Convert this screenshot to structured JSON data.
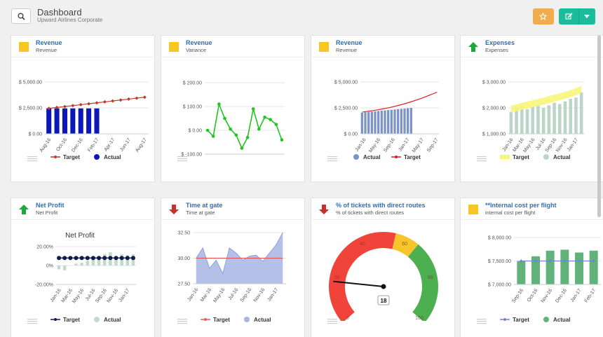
{
  "header": {
    "title": "Dashboard",
    "subtitle": "Upward Airlines Corporate"
  },
  "colors": {
    "accent": "#1abc9c",
    "star": "#f0ad4e",
    "title_link": "#2a6fc0",
    "status_neutral": "#f7c623",
    "status_up": "#1fa83a",
    "status_down": "#c9302c"
  },
  "cards": [
    {
      "title": "Revenue",
      "subtitle": "Revenue",
      "status_icon": "yellow-square-icon",
      "legend": [
        "Target",
        "Actual"
      ],
      "chart_data": {
        "type": "bar",
        "yticks": [
          "$ 5,000.00",
          "$ 2,500.00",
          "$ 0.00"
        ],
        "ylim": [
          0,
          5000
        ],
        "categories": [
          "Aug-16",
          "Sep-16",
          "Oct-16",
          "Nov-16",
          "Dec-16",
          "Jan-17",
          "Feb-17",
          "Mar-17",
          "Apr-17",
          "May-17",
          "Jun-17",
          "Jul-17",
          "Aug-17"
        ],
        "xticks": [
          "Aug-16",
          "Oct-16",
          "Dec-16",
          "Feb-17",
          "Apr-17",
          "Jun-17",
          "Aug-17"
        ],
        "series": [
          {
            "name": "Actual",
            "type": "bar",
            "color": "#0b17b8",
            "values": [
              2450,
              2450,
              2450,
              2450,
              2450,
              2450,
              2450,
              null,
              null,
              null,
              null,
              null,
              null
            ]
          },
          {
            "name": "Target",
            "type": "line",
            "color": "#c0392b",
            "values": [
              2450,
              2540,
              2630,
              2720,
              2810,
              2900,
              2990,
              3080,
              3170,
              3260,
              3350,
              3440,
              3530
            ]
          }
        ]
      }
    },
    {
      "title": "Revenue",
      "subtitle": "Variance",
      "status_icon": "yellow-square-icon",
      "legend": [],
      "chart_data": {
        "type": "line",
        "yticks": [
          "$ 200.00",
          "$ 100.00",
          "$ 0.00",
          "$ -100.00"
        ],
        "ylim": [
          -100,
          200
        ],
        "categories": [
          "Jan-16",
          "Feb-16",
          "Mar-16",
          "Apr-16",
          "May-16",
          "Jun-16",
          "Jul-16",
          "Aug-16",
          "Sep-16",
          "Oct-16",
          "Nov-16",
          "Dec-16",
          "Jan-17",
          "Feb-17"
        ],
        "xticks": [
          "Jan-16",
          "Mar-16",
          "May-16",
          "Jul-16",
          "Sep-16",
          "Nov-16",
          "Jan-17"
        ],
        "series": [
          {
            "name": "Variance",
            "color": "#22c322",
            "values": [
              0,
              -25,
              110,
              50,
              5,
              -20,
              -75,
              -30,
              90,
              5,
              55,
              45,
              25,
              -40
            ]
          }
        ]
      }
    },
    {
      "title": "Revenue",
      "subtitle": "Revenue",
      "status_icon": "yellow-square-icon",
      "legend": [
        "Actual",
        "Target"
      ],
      "chart_data": {
        "type": "bar",
        "yticks": [
          "$ 5,000.00",
          "$ 2,500.00",
          "$ 0.00"
        ],
        "ylim": [
          0,
          5000
        ],
        "xticks": [
          "Jan-16",
          "May-16",
          "Sep-16",
          "Jan-17",
          "May-17",
          "Sep-17"
        ],
        "x_months": 24,
        "series": [
          {
            "name": "Actual",
            "type": "bar",
            "color": "#7b93c5",
            "values": [
              2050,
              2080,
              2110,
              2140,
              2170,
              2200,
              2230,
              2260,
              2290,
              2320,
              2350,
              2380,
              2410,
              2440,
              2470,
              2500
            ]
          },
          {
            "name": "Target",
            "type": "line",
            "color": "#e01b1b",
            "values": [
              2100,
              2150,
              2200,
              2260,
              2320,
              2390,
              2460,
              2540,
              2630,
              2720,
              2820,
              2930,
              3040,
              3160,
              3290,
              3420,
              3560,
              3710,
              3860,
              4020
            ]
          }
        ]
      }
    },
    {
      "title": "Expenses",
      "subtitle": "Expenses",
      "status_icon": "arrow-up-icon",
      "legend": [
        "Target",
        "Actual"
      ],
      "chart_data": {
        "type": "bar",
        "yticks": [
          "$ 3,000.00",
          "$ 2,000.00",
          "$ 1,000.00"
        ],
        "ylim": [
          1000,
          3000
        ],
        "categories": [
          "Jan-16",
          "Feb-16",
          "Mar-16",
          "Apr-16",
          "May-16",
          "Jun-16",
          "Jul-16",
          "Aug-16",
          "Sep-16",
          "Oct-16",
          "Nov-16",
          "Dec-16",
          "Jan-17",
          "Feb-17"
        ],
        "xticks": [
          "Jan-16",
          "Mar-16",
          "May-16",
          "Jul-16",
          "Sep-16",
          "Nov-16",
          "Jan-17"
        ],
        "series": [
          {
            "name": "Actual",
            "type": "bar",
            "color": "#bcd5cb",
            "values": [
              1850,
              2050,
              2100,
              1950,
              2050,
              2100,
              2000,
              2100,
              2200,
              2150,
              2250,
              2350,
              2400,
              2600
            ]
          },
          {
            "name": "Target",
            "type": "area",
            "color": "#f7f57a",
            "values": [
              1950,
              2000,
              2060,
              2110,
              2160,
              2210,
              2260,
              2320,
              2370,
              2430,
              2490,
              2550,
              2620,
              2720
            ]
          }
        ]
      }
    },
    {
      "title": "Net Profit",
      "subtitle": "Net Profit",
      "status_icon": "arrow-up-icon",
      "legend": [
        "Target",
        "Actual"
      ],
      "chart_data": {
        "type": "bar",
        "title": "Net Profit",
        "yticks": [
          "20.00%",
          "0%",
          "-20.00%"
        ],
        "ylim": [
          -20,
          20
        ],
        "categories": [
          "Jan-16",
          "Feb-16",
          "Mar-16",
          "Apr-16",
          "May-16",
          "Jun-16",
          "Jul-16",
          "Aug-16",
          "Sep-16",
          "Oct-16",
          "Nov-16",
          "Dec-16",
          "Jan-17",
          "Feb-17"
        ],
        "xticks": [
          "Jan-16",
          "Mar-16",
          "May-16",
          "Jul-16",
          "Sep-16",
          "Nov-16",
          "Jan-17"
        ],
        "series": [
          {
            "name": "Actual",
            "type": "bar",
            "color": "#c3dac9",
            "values": [
              -4,
              -5,
              0,
              2,
              3,
              5,
              8,
              10,
              12,
              14,
              10,
              12,
              11,
              12
            ]
          },
          {
            "name": "Target",
            "type": "line",
            "color": "#0d1b4c",
            "values": [
              8,
              8,
              8,
              8,
              8,
              8,
              8,
              8,
              8,
              8,
              8,
              8,
              8,
              8
            ]
          }
        ]
      }
    },
    {
      "title": "Time at gate",
      "subtitle": "Time at gate",
      "status_icon": "arrow-down-icon",
      "legend": [
        "Target",
        "Actual"
      ],
      "chart_data": {
        "type": "area",
        "yticks": [
          "32.50",
          "30.00",
          "27.50"
        ],
        "ylim": [
          27.5,
          32.5
        ],
        "categories": [
          "Jan-16",
          "Feb-16",
          "Mar-16",
          "Apr-16",
          "May-16",
          "Jun-16",
          "Jul-16",
          "Aug-16",
          "Sep-16",
          "Oct-16",
          "Nov-16",
          "Dec-16",
          "Jan-17",
          "Feb-17"
        ],
        "xticks": [
          "Jan-16",
          "Mar-16",
          "May-16",
          "Jul-16",
          "Sep-16",
          "Nov-16",
          "Jan-17"
        ],
        "series": [
          {
            "name": "Actual",
            "type": "area",
            "color": "#a7b5e4",
            "values": [
              30.0,
              31.0,
              29.0,
              29.8,
              28.5,
              31.0,
              30.5,
              29.8,
              30.2,
              30.3,
              29.7,
              30.5,
              31.3,
              32.5
            ]
          },
          {
            "name": "Target",
            "type": "line",
            "color": "#e05a5a",
            "values": [
              30.0,
              30.0,
              30.0,
              30.0,
              30.0,
              30.0,
              30.0,
              30.0,
              30.0,
              30.0,
              30.0,
              30.0,
              30.0,
              30.0
            ]
          }
        ]
      }
    },
    {
      "title": "% of tickets with direct routes",
      "subtitle": "% of tickets with direct routes",
      "status_icon": "arrow-down-icon",
      "legend": [],
      "chart_data": {
        "type": "gauge",
        "min": 0,
        "max": 100,
        "value": 18,
        "value_label": "18",
        "tick_labels": [
          "0",
          "20",
          "40",
          "60",
          "80",
          "100"
        ],
        "bands": [
          {
            "from": 0,
            "to": 55,
            "color": "#f0443a"
          },
          {
            "from": 55,
            "to": 65,
            "color": "#f7c42a"
          },
          {
            "from": 65,
            "to": 100,
            "color": "#4caf50"
          }
        ]
      }
    },
    {
      "title": "**Internal cost per flight",
      "subtitle": "internal cost per flight",
      "status_icon": "yellow-square-icon",
      "legend": [
        "Target",
        "Actual"
      ],
      "chart_data": {
        "type": "bar",
        "yticks": [
          "$ 8,000.00",
          "$ 7,500.00",
          "$ 7,000.00"
        ],
        "ylim": [
          7000,
          8000
        ],
        "categories": [
          "Sep-16",
          "Oct-16",
          "Nov-16",
          "Dec-16",
          "Jan-17",
          "Feb-17"
        ],
        "xticks": [
          "Sep-16",
          "Oct-16",
          "Nov-16",
          "Dec-16",
          "Jan-17",
          "Feb-17"
        ],
        "series": [
          {
            "name": "Actual",
            "type": "bar",
            "color": "#62b37b",
            "values": [
              7500,
              7600,
              7720,
              7740,
              7680,
              7720
            ]
          },
          {
            "name": "Target",
            "type": "line",
            "color": "#6e86c8",
            "values": [
              7500,
              7500,
              7500,
              7500,
              7500,
              7500
            ]
          }
        ]
      }
    }
  ]
}
